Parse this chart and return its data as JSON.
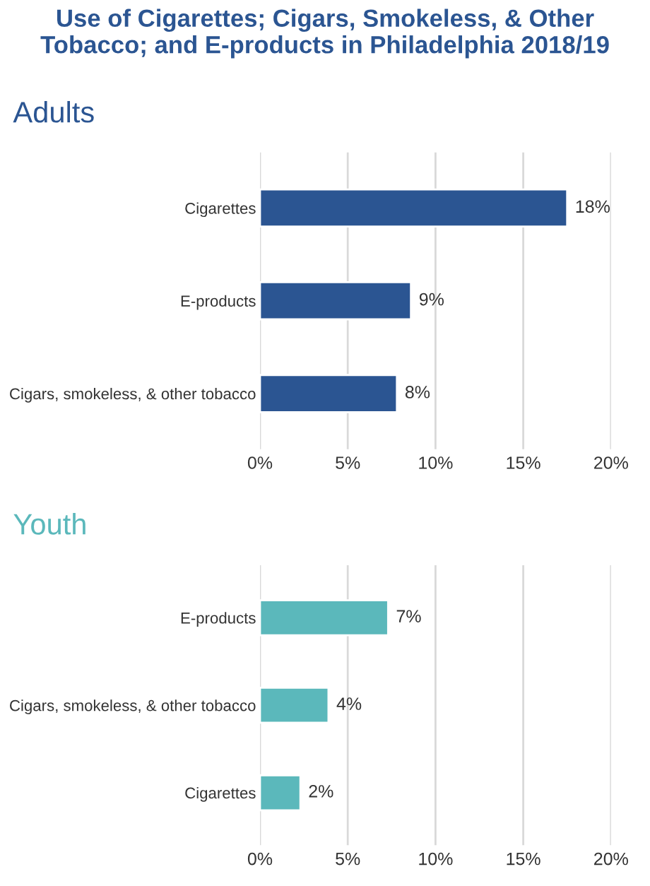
{
  "chart_data": [
    {
      "type": "bar",
      "orientation": "horizontal",
      "title": "Use of Cigarettes; Cigars, Smokeless, & Other Tobacco; and E-products in Philadelphia 2018/19",
      "subtitle": "Adults",
      "categories": [
        "Cigarettes",
        "E-products",
        "Cigars, smokeless, & other tobacco"
      ],
      "values": [
        17.5,
        8.6,
        7.8
      ],
      "value_labels": [
        "18%",
        "9%",
        "8%"
      ],
      "color": "#2b5592",
      "xlim": [
        0,
        20
      ],
      "xticks": [
        {
          "value": 0,
          "label": "0%"
        },
        {
          "value": 5,
          "label": "5%"
        },
        {
          "value": 10,
          "label": "10%"
        },
        {
          "value": 15,
          "label": "15%"
        },
        {
          "value": 20,
          "label": "20%"
        }
      ],
      "grid": "x",
      "legend": false
    },
    {
      "type": "bar",
      "orientation": "horizontal",
      "subtitle": "Youth",
      "categories": [
        "E-products",
        "Cigars, smokeless, & other tobacco",
        "Cigarettes"
      ],
      "values": [
        7.3,
        3.9,
        2.3
      ],
      "value_labels": [
        "7%",
        "4%",
        "2%"
      ],
      "color": "#5bb8bb",
      "xlim": [
        0,
        20
      ],
      "xticks": [
        {
          "value": 0,
          "label": "0%"
        },
        {
          "value": 5,
          "label": "5%"
        },
        {
          "value": 10,
          "label": "10%"
        },
        {
          "value": 15,
          "label": "15%"
        },
        {
          "value": 20,
          "label": "20%"
        }
      ],
      "grid": "x",
      "legend": false
    }
  ]
}
